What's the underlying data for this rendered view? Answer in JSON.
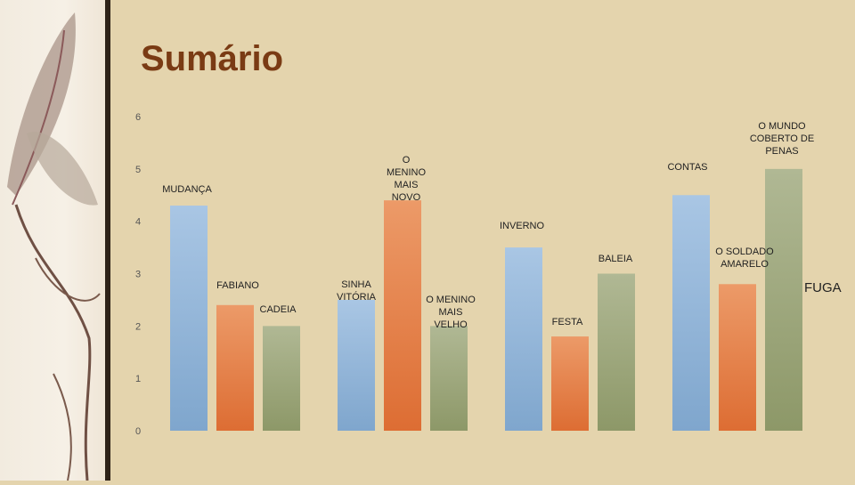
{
  "slide": {
    "title": "Sumário"
  },
  "chart_data": {
    "type": "bar",
    "ylim": [
      0,
      6
    ],
    "yticks": [
      "0",
      "1",
      "2",
      "3",
      "4",
      "5",
      "6"
    ],
    "grid": false,
    "groups": [
      {
        "bars": [
          {
            "value": 4.3,
            "label": "MUDANÇA",
            "color": "blue"
          },
          {
            "value": 2.4,
            "label": "FABIANO",
            "color": "orange"
          },
          {
            "value": 2.0,
            "label": "CADEIA",
            "color": "green"
          }
        ]
      },
      {
        "bars": [
          {
            "value": 2.5,
            "label": "SINHA VITÓRIA",
            "color": "blue"
          },
          {
            "value": 4.4,
            "label": "O MENINO MAIS NOVO",
            "color": "orange"
          },
          {
            "value": 2.0,
            "label": "O MENINO MAIS VELHO",
            "color": "green"
          }
        ]
      },
      {
        "bars": [
          {
            "value": 3.5,
            "label": "INVERNO",
            "color": "blue"
          },
          {
            "value": 1.8,
            "label": "FESTA",
            "color": "orange"
          },
          {
            "value": 3.0,
            "label": "BALEIA",
            "color": "green"
          }
        ]
      },
      {
        "bars": [
          {
            "value": 4.5,
            "label": "CONTAS",
            "color": "blue"
          },
          {
            "value": 2.8,
            "label": "O SOLDADO AMARELO",
            "color": "orange"
          },
          {
            "value": 5.0,
            "label": "O MUNDO COBERTO DE PENAS",
            "color": "green"
          }
        ]
      }
    ],
    "annotations": [
      {
        "text": "FUGA"
      }
    ],
    "colors": {
      "blue": [
        "#a9c6e4",
        "#7fa6cd"
      ],
      "orange": [
        "#ec9a68",
        "#dd6d33"
      ],
      "green": [
        "#b0b894",
        "#8d9868"
      ]
    }
  }
}
